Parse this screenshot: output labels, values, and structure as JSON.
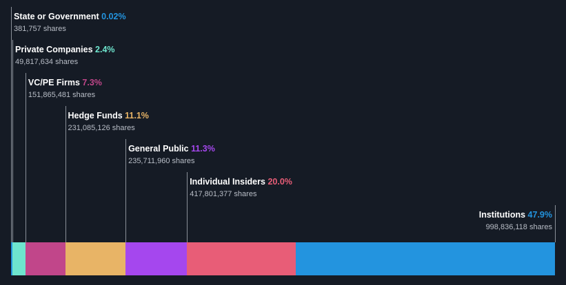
{
  "chart_data": {
    "type": "bar",
    "subtype": "stacked-horizontal-ownership",
    "share_suffix": "shares",
    "segments": [
      {
        "name": "State or Government",
        "percent_label": "0.02%",
        "percent": 0.02,
        "shares": "381,757",
        "color": "#2394df"
      },
      {
        "name": "Private Companies",
        "percent_label": "2.4%",
        "percent": 2.4,
        "shares": "49,817,634",
        "color": "#6ee5ce"
      },
      {
        "name": "VC/PE Firms",
        "percent_label": "7.3%",
        "percent": 7.3,
        "shares": "151,865,481",
        "color": "#c1468a"
      },
      {
        "name": "Hedge Funds",
        "percent_label": "11.1%",
        "percent": 11.1,
        "shares": "231,085,126",
        "color": "#e8b466"
      },
      {
        "name": "General Public",
        "percent_label": "11.3%",
        "percent": 11.3,
        "shares": "235,711,960",
        "color": "#a547ee"
      },
      {
        "name": "Individual Insiders",
        "percent_label": "20.0%",
        "percent": 20.0,
        "shares": "417,801,377",
        "color": "#e85d77"
      },
      {
        "name": "Institutions",
        "percent_label": "47.9%",
        "percent": 47.9,
        "shares": "998,836,118",
        "color": "#2394df"
      }
    ]
  }
}
